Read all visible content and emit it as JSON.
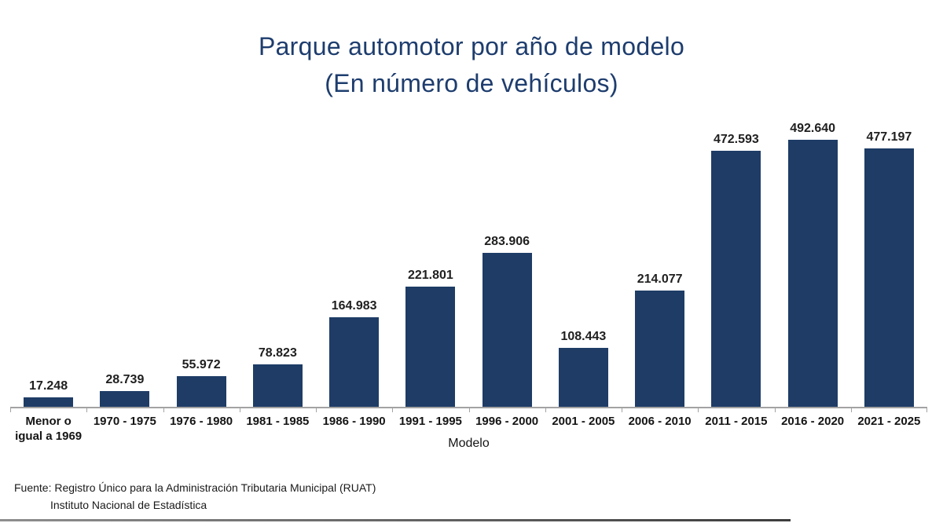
{
  "title": {
    "line1": "Parque automotor por año de modelo",
    "line2": "(En número de vehículos)"
  },
  "chart_data": {
    "type": "bar",
    "title": "Parque automotor por año de modelo (En número de vehículos)",
    "categories": [
      "Menor o igual a 1969",
      "1970 - 1975",
      "1976 - 1980",
      "1981 - 1985",
      "1986 - 1990",
      "1991 - 1995",
      "1996 - 2000",
      "2001 - 2005",
      "2006 - 2010",
      "2011 - 2015",
      "2016 - 2020",
      "2021 - 2025"
    ],
    "values": [
      17248,
      28739,
      55972,
      78823,
      164983,
      221801,
      283906,
      108443,
      214077,
      472593,
      492640,
      477197
    ],
    "value_labels": [
      "17.248",
      "28.739",
      "55.972",
      "78.823",
      "164.983",
      "221.801",
      "283.906",
      "108.443",
      "214.077",
      "472.593",
      "492.640",
      "477.197"
    ],
    "xlabel": "Modelo",
    "ylabel": "",
    "ylim": [
      0,
      500000
    ],
    "grid": false,
    "legend": "none",
    "bar_color": "#1e3c66",
    "axis_color": "#a3a3a3",
    "title_color": "#1e3d6e"
  },
  "footer": {
    "source_line1": "Fuente: Registro Único para la Administración Tributaria Municipal (RUAT)",
    "source_line2": "Instituto Nacional de Estadística"
  }
}
